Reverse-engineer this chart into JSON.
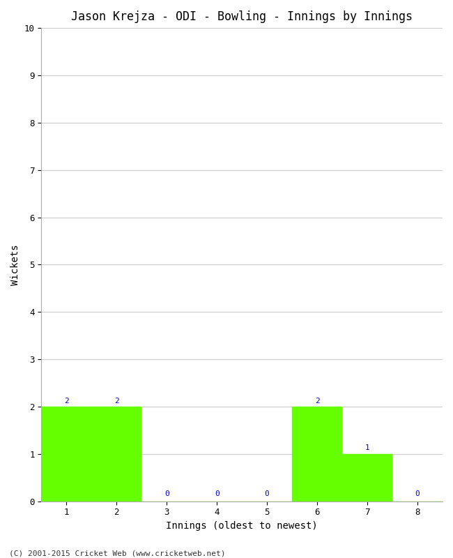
{
  "title": "Jason Krejza - ODI - Bowling - Innings by Innings",
  "xlabel": "Innings (oldest to newest)",
  "ylabel": "Wickets",
  "categories": [
    1,
    2,
    3,
    4,
    5,
    6,
    7,
    8
  ],
  "values": [
    2,
    2,
    0,
    0,
    0,
    2,
    1,
    0
  ],
  "bar_color": "#66ff00",
  "bar_edge_color": "#66ff00",
  "ylim": [
    0,
    10
  ],
  "yticks": [
    0,
    1,
    2,
    3,
    4,
    5,
    6,
    7,
    8,
    9,
    10
  ],
  "xticks": [
    1,
    2,
    3,
    4,
    5,
    6,
    7,
    8
  ],
  "label_color": "#0000cc",
  "label_fontsize": 8,
  "title_fontsize": 12,
  "axis_label_fontsize": 10,
  "tick_fontsize": 9,
  "background_color": "#ffffff",
  "grid_color": "#cccccc",
  "footer_text": "(C) 2001-2015 Cricket Web (www.cricketweb.net)",
  "footer_fontsize": 8
}
